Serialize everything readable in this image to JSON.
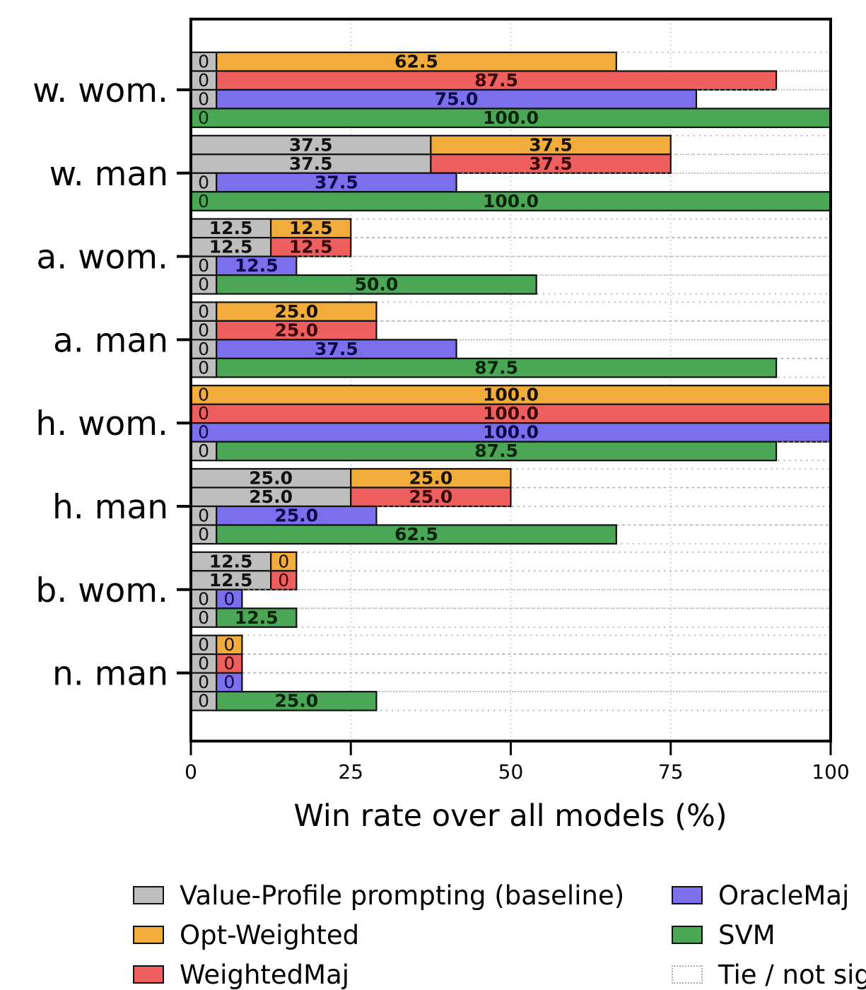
{
  "chart_data": {
    "type": "bar",
    "orientation": "horizontal-stacked",
    "title": "",
    "xlabel": "Win rate over all models (%)",
    "ylabel": "",
    "xlim": [
      0,
      100
    ],
    "xticks": [
      "0",
      "25",
      "50",
      "75",
      "100"
    ],
    "grid": "vertical dotted",
    "legend_position": "bottom",
    "categories": [
      "w. wom.",
      "w. man",
      "a. wom.",
      "a. man",
      "h. wom.",
      "h. man",
      "b. wom.",
      "n. man"
    ],
    "baseline": {
      "name": "Value-Profile prompting (baseline)",
      "color": "#bebebe",
      "text_color": "#111111"
    },
    "series": [
      {
        "name": "Opt-Weighted",
        "color": "#f2ac3c",
        "text_color": "#1a1200",
        "values": [
          62.5,
          37.5,
          12.5,
          25.0,
          100.0,
          25.0,
          0,
          0
        ],
        "baseline_values": [
          0,
          37.5,
          12.5,
          0,
          0,
          25.0,
          12.5,
          0
        ]
      },
      {
        "name": "WeightedMaj",
        "color": "#ee5f60",
        "text_color": "#3a0606",
        "values": [
          87.5,
          37.5,
          12.5,
          25.0,
          100.0,
          25.0,
          0,
          0
        ],
        "baseline_values": [
          0,
          37.5,
          12.5,
          0,
          0,
          25.0,
          12.5,
          0
        ]
      },
      {
        "name": "OracleMaj",
        "color": "#7b6feb",
        "text_color": "#0c0a4a",
        "values": [
          75.0,
          37.5,
          12.5,
          37.5,
          100.0,
          25.0,
          0,
          0
        ],
        "baseline_values": [
          0,
          0,
          0,
          0,
          0,
          0,
          0,
          0
        ]
      },
      {
        "name": "SVM",
        "color": "#4ba755",
        "text_color": "#08240b",
        "values": [
          100.0,
          100.0,
          50.0,
          87.5,
          87.5,
          62.5,
          12.5,
          25.0
        ],
        "baseline_values": [
          0,
          0,
          0,
          0,
          0,
          0,
          0,
          0
        ]
      }
    ],
    "tie_segment": {
      "name": "Tie / not sig",
      "style": "dotted outline, no fill",
      "color": "#aaaaaa"
    }
  },
  "legend": {
    "items": [
      {
        "label": "Value-Profile prompting (baseline)",
        "color": "#bebebe",
        "kind": "fill"
      },
      {
        "label": "Opt-Weighted",
        "color": "#f2ac3c",
        "kind": "fill"
      },
      {
        "label": "WeightedMaj",
        "color": "#ee5f60",
        "kind": "fill"
      },
      {
        "label": "OracleMaj",
        "color": "#7b6feb",
        "kind": "fill"
      },
      {
        "label": "SVM",
        "color": "#4ba755",
        "kind": "fill"
      },
      {
        "label": "Tie / not sig",
        "color": "#aaaaaa",
        "kind": "tie"
      }
    ]
  }
}
